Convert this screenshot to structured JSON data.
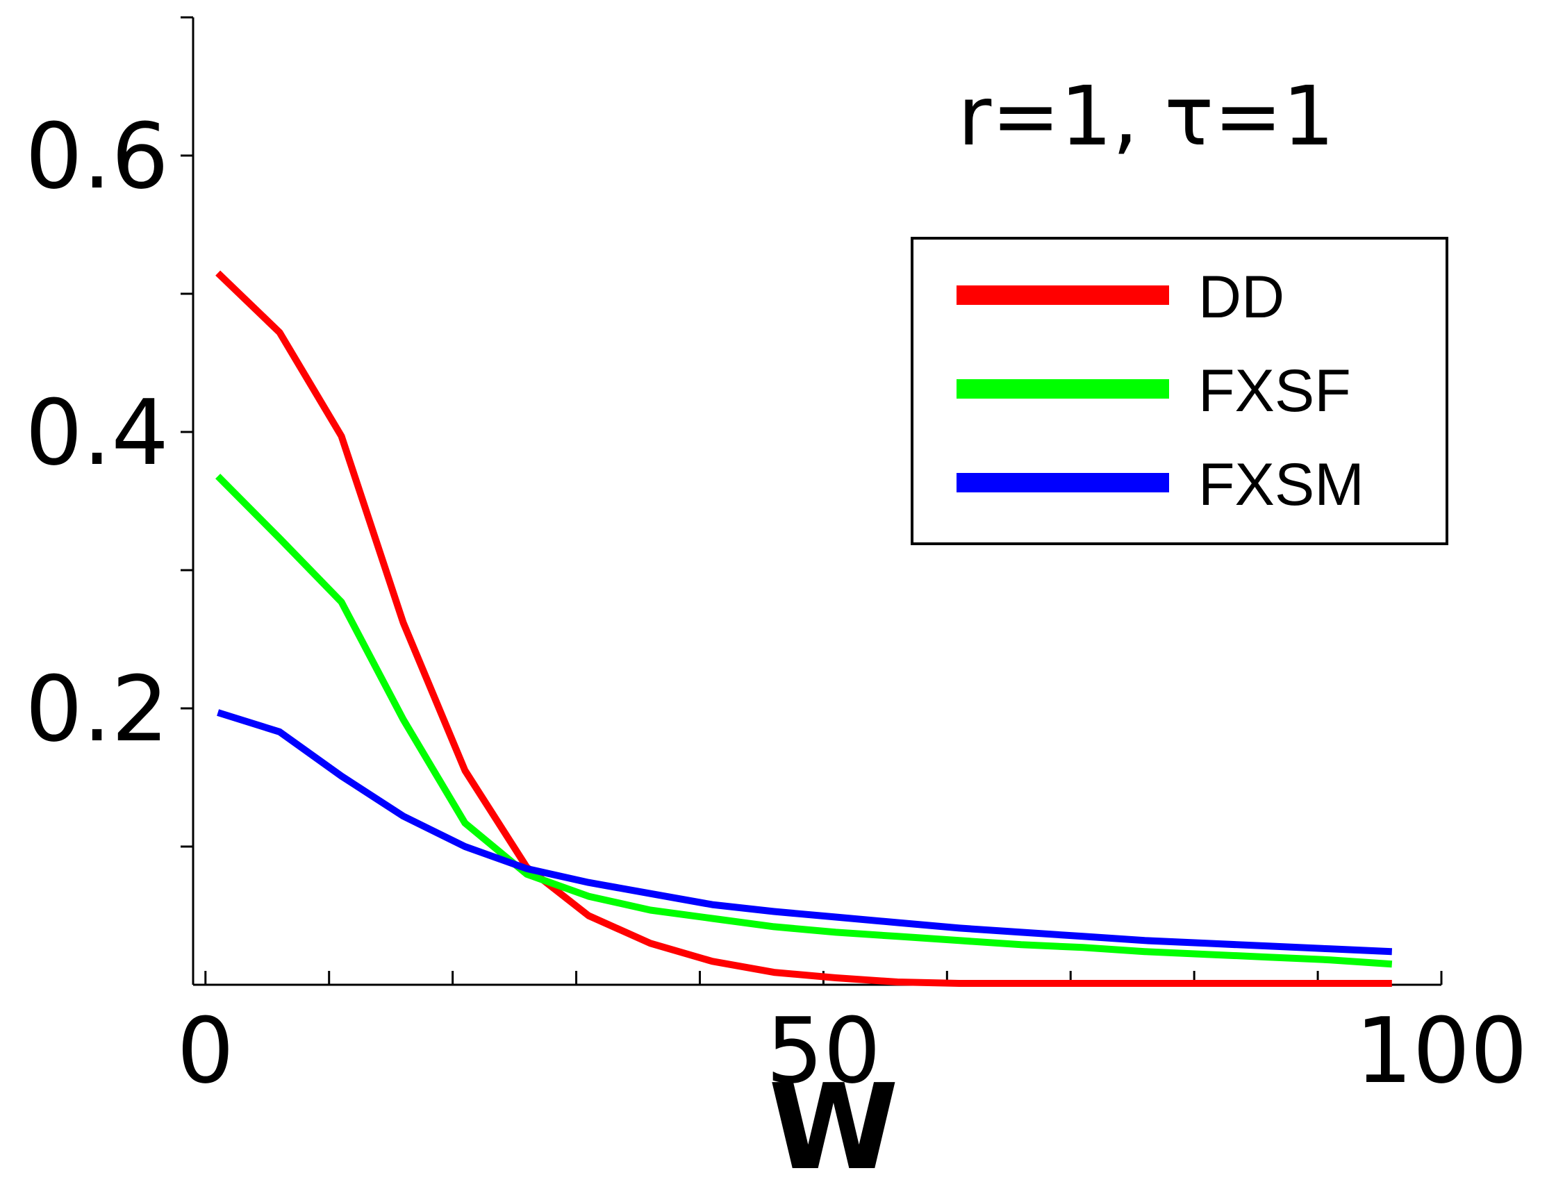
{
  "chart_data": {
    "type": "line",
    "title": "",
    "annotation": "r=1, τ=1",
    "xlabel": "W",
    "ylabel": "",
    "xlim": [
      -1,
      100
    ],
    "ylim": [
      0,
      0.7
    ],
    "x_ticks": [
      0,
      50,
      100
    ],
    "y_ticks": [
      0.2,
      0.4,
      0.6
    ],
    "x_minor_ticks": [
      0,
      10,
      20,
      30,
      40,
      50,
      60,
      70,
      80,
      90,
      100
    ],
    "y_minor_ticks": [
      0.1,
      0.2,
      0.3,
      0.4,
      0.5,
      0.6,
      0.7
    ],
    "grid": false,
    "legend_position": "top-right",
    "x": [
      1,
      6,
      11,
      16,
      21,
      26,
      31,
      36,
      41,
      46,
      51,
      56,
      61,
      66,
      71,
      76,
      81,
      86,
      91,
      96
    ],
    "series": [
      {
        "name": "DD",
        "color": "#ff0000",
        "values": [
          0.515,
          0.472,
          0.397,
          0.262,
          0.155,
          0.085,
          0.05,
          0.03,
          0.017,
          0.009,
          0.005,
          0.002,
          0.001,
          0.001,
          0.001,
          0.001,
          0.001,
          0.001,
          0.001,
          0.001
        ]
      },
      {
        "name": "FXSF",
        "color": "#00ff00",
        "values": [
          0.368,
          0.323,
          0.277,
          0.192,
          0.117,
          0.08,
          0.064,
          0.054,
          0.048,
          0.042,
          0.038,
          0.035,
          0.032,
          0.029,
          0.027,
          0.024,
          0.022,
          0.02,
          0.018,
          0.015
        ]
      },
      {
        "name": "FXSM",
        "color": "#0000ff",
        "values": [
          0.197,
          0.183,
          0.151,
          0.122,
          0.1,
          0.084,
          0.074,
          0.066,
          0.058,
          0.053,
          0.049,
          0.045,
          0.041,
          0.038,
          0.035,
          0.032,
          0.03,
          0.028,
          0.026,
          0.024
        ]
      }
    ]
  }
}
